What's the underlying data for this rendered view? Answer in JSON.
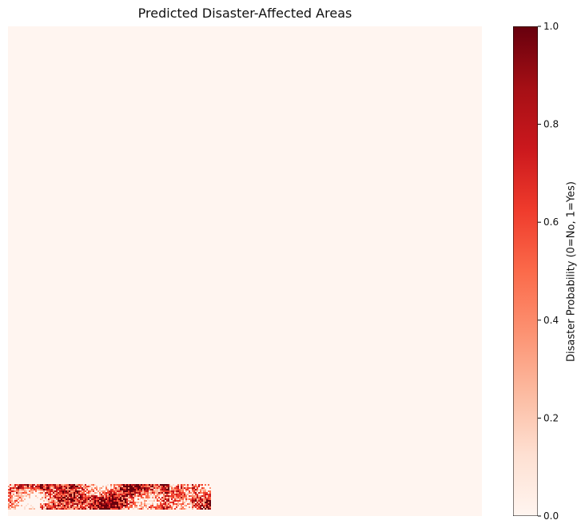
{
  "chart_data": {
    "type": "heatmap",
    "title": "Predicted Disaster-Affected Areas",
    "xlabel": "",
    "ylabel": "",
    "axes_visible": false,
    "colormap": "Reds",
    "colorbar": {
      "label": "Disaster Probability (0=No, 1=Yes)",
      "range": [
        0,
        1
      ],
      "ticks": [
        0.0,
        0.2,
        0.4,
        0.6,
        0.8,
        1.0
      ],
      "tick_labels": [
        "0.0",
        "0.2",
        "0.4",
        "0.6",
        "0.8",
        "1.0"
      ]
    },
    "map": {
      "background_value": 0.0,
      "affected_region": "bottom-left strip",
      "affected_value_range": [
        0.0,
        1.0
      ]
    }
  },
  "colors": {
    "low": "#fff5f0",
    "high": "#67000d"
  }
}
